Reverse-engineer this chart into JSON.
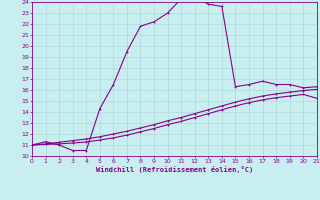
{
  "xlabel": "Windchill (Refroidissement éolien,°C)",
  "bg_color": "#c8eef0",
  "grid_color": "#b0d8dc",
  "line_color": "#880088",
  "xlim": [
    0,
    21
  ],
  "ylim": [
    10,
    24
  ],
  "yticks": [
    10,
    11,
    12,
    13,
    14,
    15,
    16,
    17,
    18,
    19,
    20,
    21,
    22,
    23,
    24
  ],
  "xticks": [
    0,
    1,
    2,
    3,
    4,
    5,
    6,
    7,
    8,
    9,
    10,
    11,
    12,
    13,
    14,
    15,
    16,
    17,
    18,
    19,
    20,
    21
  ],
  "curve1_x": [
    0,
    1,
    2,
    3,
    4,
    5,
    6,
    7,
    8,
    9,
    10,
    11,
    12,
    13,
    14,
    15,
    16,
    17,
    18,
    19,
    20,
    21
  ],
  "curve1_y": [
    11.0,
    11.3,
    11.0,
    10.5,
    10.5,
    14.3,
    16.5,
    19.5,
    21.8,
    22.2,
    23.0,
    24.3,
    24.5,
    23.8,
    23.6,
    16.3,
    16.5,
    16.8,
    16.5,
    16.5,
    16.2,
    16.3
  ],
  "curve2_x": [
    0,
    1,
    2,
    3,
    4,
    5,
    6,
    7,
    8,
    9,
    10,
    11,
    12,
    13,
    14,
    15,
    16,
    17,
    18,
    19,
    20,
    21
  ],
  "curve2_y": [
    11.0,
    11.1,
    11.25,
    11.4,
    11.55,
    11.75,
    12.0,
    12.25,
    12.55,
    12.85,
    13.2,
    13.5,
    13.85,
    14.2,
    14.55,
    14.9,
    15.2,
    15.45,
    15.65,
    15.8,
    15.95,
    16.05
  ],
  "curve3_x": [
    0,
    1,
    2,
    3,
    4,
    5,
    6,
    7,
    8,
    9,
    10,
    11,
    12,
    13,
    14,
    15,
    16,
    17,
    18,
    19,
    20,
    21
  ],
  "curve3_y": [
    11.0,
    11.05,
    11.1,
    11.18,
    11.28,
    11.45,
    11.65,
    11.9,
    12.2,
    12.5,
    12.85,
    13.15,
    13.5,
    13.85,
    14.2,
    14.55,
    14.85,
    15.1,
    15.3,
    15.45,
    15.6,
    15.25
  ]
}
